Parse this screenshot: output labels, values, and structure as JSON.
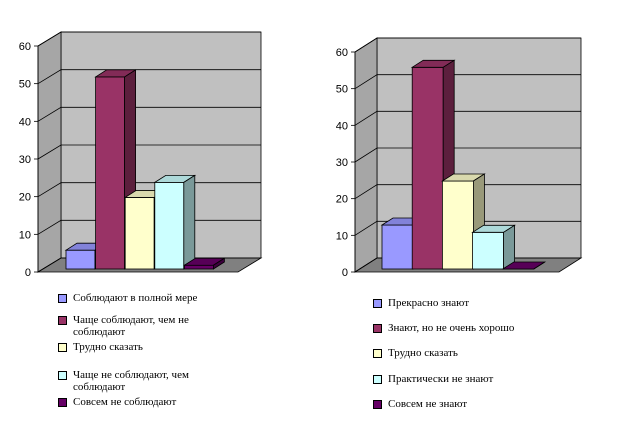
{
  "chart_data": [
    {
      "type": "bar",
      "title": "",
      "xlabel": "",
      "ylabel": "",
      "ylim": [
        0,
        60
      ],
      "yticks": [
        0,
        10,
        20,
        30,
        40,
        50,
        60
      ],
      "three_d": true,
      "grid": true,
      "legend_position": "bottom",
      "series": [
        {
          "name": "Соблюдают в полной мере",
          "values": [
            5
          ],
          "color": "#9999ff"
        },
        {
          "name": "Чаще соблюдают, чем не соблюдают",
          "values": [
            51
          ],
          "color": "#993366"
        },
        {
          "name": "Трудно сказать",
          "values": [
            19
          ],
          "color": "#ffffcc"
        },
        {
          "name": "Чаще не соблюдают, чем соблюдают",
          "values": [
            23
          ],
          "color": "#ccffff"
        },
        {
          "name": "Совсем не соблюдают",
          "values": [
            1
          ],
          "color": "#660066"
        }
      ]
    },
    {
      "type": "bar",
      "title": "",
      "xlabel": "",
      "ylabel": "",
      "ylim": [
        0,
        60
      ],
      "yticks": [
        0,
        10,
        20,
        30,
        40,
        50,
        60
      ],
      "three_d": true,
      "grid": true,
      "legend_position": "bottom",
      "series": [
        {
          "name": "Прекрасно знают",
          "values": [
            12
          ],
          "color": "#9999ff"
        },
        {
          "name": "Знают, но не очень хорошо",
          "values": [
            55
          ],
          "color": "#993366"
        },
        {
          "name": "Трудно сказать",
          "values": [
            24
          ],
          "color": "#ffffcc"
        },
        {
          "name": "Практически не знают",
          "values": [
            10
          ],
          "color": "#ccffff"
        },
        {
          "name": "Совсем не знают",
          "values": [
            0
          ],
          "color": "#660066"
        }
      ]
    }
  ]
}
